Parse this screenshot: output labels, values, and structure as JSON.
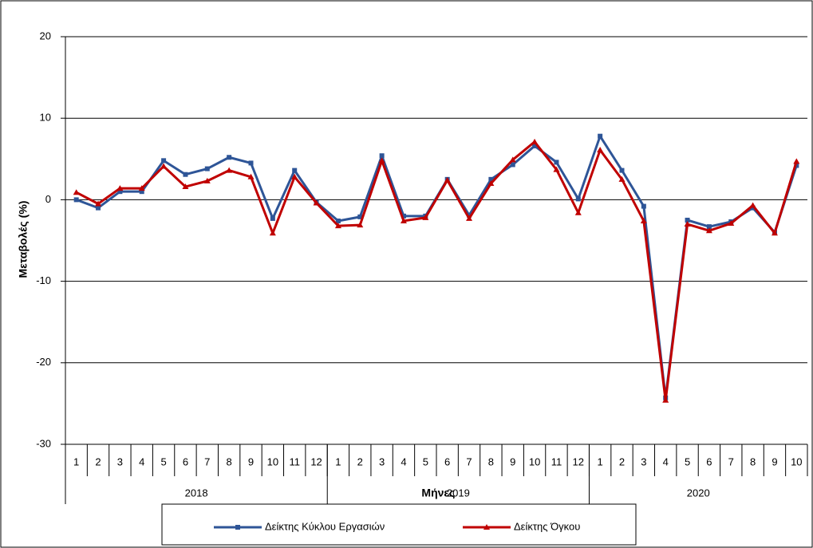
{
  "chart_data": {
    "type": "line",
    "y_label": "Μεταβολές (%)",
    "x_label": "Μήνες",
    "groups": [
      {
        "name": "2018",
        "categories": [
          "1",
          "2",
          "3",
          "4",
          "5",
          "6",
          "7",
          "8",
          "9",
          "10",
          "11",
          "12"
        ]
      },
      {
        "name": "2019",
        "categories": [
          "1",
          "2",
          "3",
          "4",
          "5",
          "6",
          "7",
          "8",
          "9",
          "10",
          "11",
          "12"
        ]
      },
      {
        "name": "2020",
        "categories": [
          "1",
          "2",
          "3",
          "4",
          "5",
          "6",
          "7",
          "8",
          "9",
          "10"
        ]
      }
    ],
    "series": [
      {
        "name": "Δείκτης Κύκλου Εργασιών",
        "color": "#2e5597",
        "marker": "square",
        "values": [
          0,
          -1,
          1.0,
          1.0,
          4.8,
          3.1,
          3.8,
          5.2,
          4.5,
          -2.3,
          3.6,
          -0.3,
          -2.6,
          -2.1,
          5.4,
          -2.0,
          -2.0,
          2.5,
          -1.9,
          2.5,
          4.3,
          6.6,
          4.6,
          0.1,
          7.8,
          3.6,
          -0.8,
          -24.3,
          -2.5,
          -3.3,
          -2.7,
          -1.0,
          -4.0,
          4.2
        ]
      },
      {
        "name": "Δείκτης Όγκου",
        "color": "#c00000",
        "marker": "triangle",
        "values": [
          0.9,
          -0.5,
          1.4,
          1.4,
          4.1,
          1.6,
          2.3,
          3.6,
          2.8,
          -4.1,
          2.8,
          -0.4,
          -3.2,
          -3.1,
          4.8,
          -2.6,
          -2.2,
          2.4,
          -2.3,
          2.0,
          4.9,
          7.1,
          3.7,
          -1.6,
          6.1,
          2.5,
          -2.6,
          -24.6,
          -3.0,
          -3.8,
          -2.9,
          -0.7,
          -4.1,
          4.7
        ]
      }
    ],
    "ylim": [
      -30,
      20
    ],
    "yticks": [
      -30,
      -20,
      -10,
      0,
      10,
      20
    ],
    "grid": true
  }
}
